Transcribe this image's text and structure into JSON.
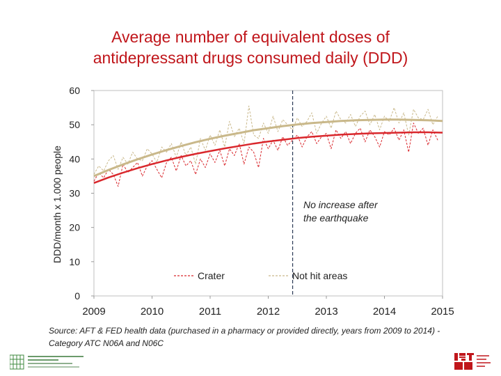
{
  "title": {
    "line1": "Average number of equivalent doses of",
    "line2": "antidepressant drugs consumed daily (DDD)"
  },
  "annotation": {
    "line1": "No increase after",
    "line2": "the earthquake"
  },
  "source": "Source: AFT & FED health data (purchased in a pharmacy or provided directly, years from 2009 to 2014) - Category ATC N06A and N06C",
  "chart_data": {
    "type": "line",
    "title": "Average number of equivalent doses of antidepressant drugs consumed daily (DDD)",
    "xlabel": "",
    "ylabel": "DDD/month x 1.000 people",
    "xlim": [
      2009,
      2015
    ],
    "ylim": [
      0,
      60
    ],
    "x_ticks": [
      "2009",
      "2010",
      "2011",
      "2012",
      "2013",
      "2014",
      "2015"
    ],
    "y_ticks": [
      "0",
      "10",
      "20",
      "30",
      "40",
      "50",
      "60"
    ],
    "grid": false,
    "legend_position": "bottom-center",
    "event_line_x": 2012.42,
    "colors": {
      "crater": "#d9272c",
      "not_hit": "#c9b88a"
    },
    "series": [
      {
        "name": "Crater",
        "style": "dashed",
        "x": [
          2009.0,
          2009.083,
          2009.167,
          2009.25,
          2009.333,
          2009.417,
          2009.5,
          2009.583,
          2009.667,
          2009.75,
          2009.833,
          2009.917,
          2010.0,
          2010.083,
          2010.167,
          2010.25,
          2010.333,
          2010.417,
          2010.5,
          2010.583,
          2010.667,
          2010.75,
          2010.833,
          2010.917,
          2011.0,
          2011.083,
          2011.167,
          2011.25,
          2011.333,
          2011.417,
          2011.5,
          2011.583,
          2011.667,
          2011.75,
          2011.833,
          2011.917,
          2012.0,
          2012.083,
          2012.167,
          2012.25,
          2012.333,
          2012.417,
          2012.5,
          2012.583,
          2012.667,
          2012.75,
          2012.833,
          2012.917,
          2013.0,
          2013.083,
          2013.167,
          2013.25,
          2013.333,
          2013.417,
          2013.5,
          2013.583,
          2013.667,
          2013.75,
          2013.833,
          2013.917,
          2014.0,
          2014.083,
          2014.167,
          2014.25,
          2014.333,
          2014.417,
          2014.5,
          2014.583,
          2014.667,
          2014.75,
          2014.833,
          2014.917
        ],
        "values": [
          33.5,
          36.0,
          34.5,
          37.0,
          35.5,
          32.0,
          38.5,
          36.0,
          37.5,
          39.0,
          35.0,
          38.0,
          39.5,
          37.0,
          34.5,
          39.0,
          40.5,
          36.5,
          41.0,
          38.0,
          39.5,
          35.5,
          40.0,
          37.5,
          41.5,
          39.0,
          42.5,
          38.0,
          43.0,
          41.0,
          44.5,
          38.5,
          43.5,
          42.0,
          37.5,
          46.0,
          43.0,
          45.5,
          42.5,
          46.5,
          44.0,
          45.5,
          47.0,
          43.5,
          46.5,
          48.0,
          44.5,
          46.5,
          47.5,
          43.0,
          48.5,
          46.0,
          48.0,
          44.5,
          47.5,
          49.0,
          45.0,
          48.5,
          46.5,
          43.5,
          48.0,
          47.0,
          49.0,
          45.5,
          48.5,
          42.0,
          50.5,
          47.5,
          49.0,
          44.0,
          48.5,
          45.5
        ]
      },
      {
        "name": "Not hit areas",
        "style": "dashed",
        "x": [
          2009.0,
          2009.083,
          2009.167,
          2009.25,
          2009.333,
          2009.417,
          2009.5,
          2009.583,
          2009.667,
          2009.75,
          2009.833,
          2009.917,
          2010.0,
          2010.083,
          2010.167,
          2010.25,
          2010.333,
          2010.417,
          2010.5,
          2010.583,
          2010.667,
          2010.75,
          2010.833,
          2010.917,
          2011.0,
          2011.083,
          2011.167,
          2011.25,
          2011.333,
          2011.417,
          2011.5,
          2011.583,
          2011.667,
          2011.75,
          2011.833,
          2011.917,
          2012.0,
          2012.083,
          2012.167,
          2012.25,
          2012.333,
          2012.417,
          2012.5,
          2012.583,
          2012.667,
          2012.75,
          2012.833,
          2012.917,
          2013.0,
          2013.083,
          2013.167,
          2013.25,
          2013.333,
          2013.417,
          2013.5,
          2013.583,
          2013.667,
          2013.75,
          2013.833,
          2013.917,
          2014.0,
          2014.083,
          2014.167,
          2014.25,
          2014.333,
          2014.417,
          2014.5,
          2014.583,
          2014.667,
          2014.75,
          2014.833,
          2014.917
        ],
        "values": [
          35.5,
          38.0,
          36.5,
          39.5,
          41.0,
          37.0,
          40.5,
          38.5,
          42.0,
          40.0,
          39.5,
          43.0,
          41.5,
          39.0,
          43.5,
          42.0,
          44.5,
          40.5,
          45.0,
          41.0,
          43.5,
          38.5,
          46.0,
          42.5,
          47.0,
          44.0,
          48.5,
          43.5,
          51.0,
          46.5,
          49.0,
          44.5,
          55.5,
          47.0,
          46.0,
          50.5,
          47.5,
          52.5,
          48.0,
          51.5,
          50.0,
          48.5,
          52.0,
          49.5,
          51.0,
          53.5,
          47.5,
          50.5,
          52.5,
          49.0,
          54.0,
          51.5,
          50.5,
          53.0,
          49.5,
          52.5,
          54.0,
          50.0,
          53.0,
          48.5,
          52.5,
          51.0,
          55.0,
          50.5,
          53.5,
          47.0,
          54.5,
          52.0,
          51.5,
          54.5,
          50.0,
          52.5
        ]
      },
      {
        "name": "Crater trend",
        "style": "solid",
        "x": [
          2009.0,
          2009.25,
          2009.5,
          2009.75,
          2010.0,
          2010.25,
          2010.5,
          2010.75,
          2011.0,
          2011.25,
          2011.5,
          2011.75,
          2012.0,
          2012.25,
          2012.5,
          2012.75,
          2013.0,
          2013.25,
          2013.5,
          2013.75,
          2014.0,
          2014.25,
          2014.5,
          2014.75,
          2015.0
        ],
        "values": [
          33.0,
          34.6,
          36.0,
          37.3,
          38.5,
          39.6,
          40.6,
          41.5,
          42.3,
          43.1,
          43.8,
          44.5,
          45.1,
          45.6,
          46.1,
          46.5,
          46.8,
          47.1,
          47.3,
          47.5,
          47.6,
          47.7,
          47.8,
          47.8,
          47.7
        ]
      },
      {
        "name": "Not hit areas trend",
        "style": "solid",
        "x": [
          2009.0,
          2009.25,
          2009.5,
          2009.75,
          2010.0,
          2010.25,
          2010.5,
          2010.75,
          2011.0,
          2011.25,
          2011.5,
          2011.75,
          2012.0,
          2012.25,
          2012.5,
          2012.75,
          2013.0,
          2013.25,
          2013.5,
          2013.75,
          2014.0,
          2014.25,
          2014.5,
          2014.75,
          2015.0
        ],
        "values": [
          35.0,
          36.8,
          38.4,
          39.9,
          41.3,
          42.6,
          43.8,
          44.9,
          45.9,
          46.8,
          47.6,
          48.4,
          49.0,
          49.6,
          50.1,
          50.5,
          50.8,
          51.1,
          51.3,
          51.4,
          51.5,
          51.5,
          51.4,
          51.3,
          51.1
        ]
      }
    ],
    "legend": [
      {
        "label": "Crater",
        "series": 0
      },
      {
        "label": "Not hit areas",
        "series": 1
      }
    ]
  }
}
